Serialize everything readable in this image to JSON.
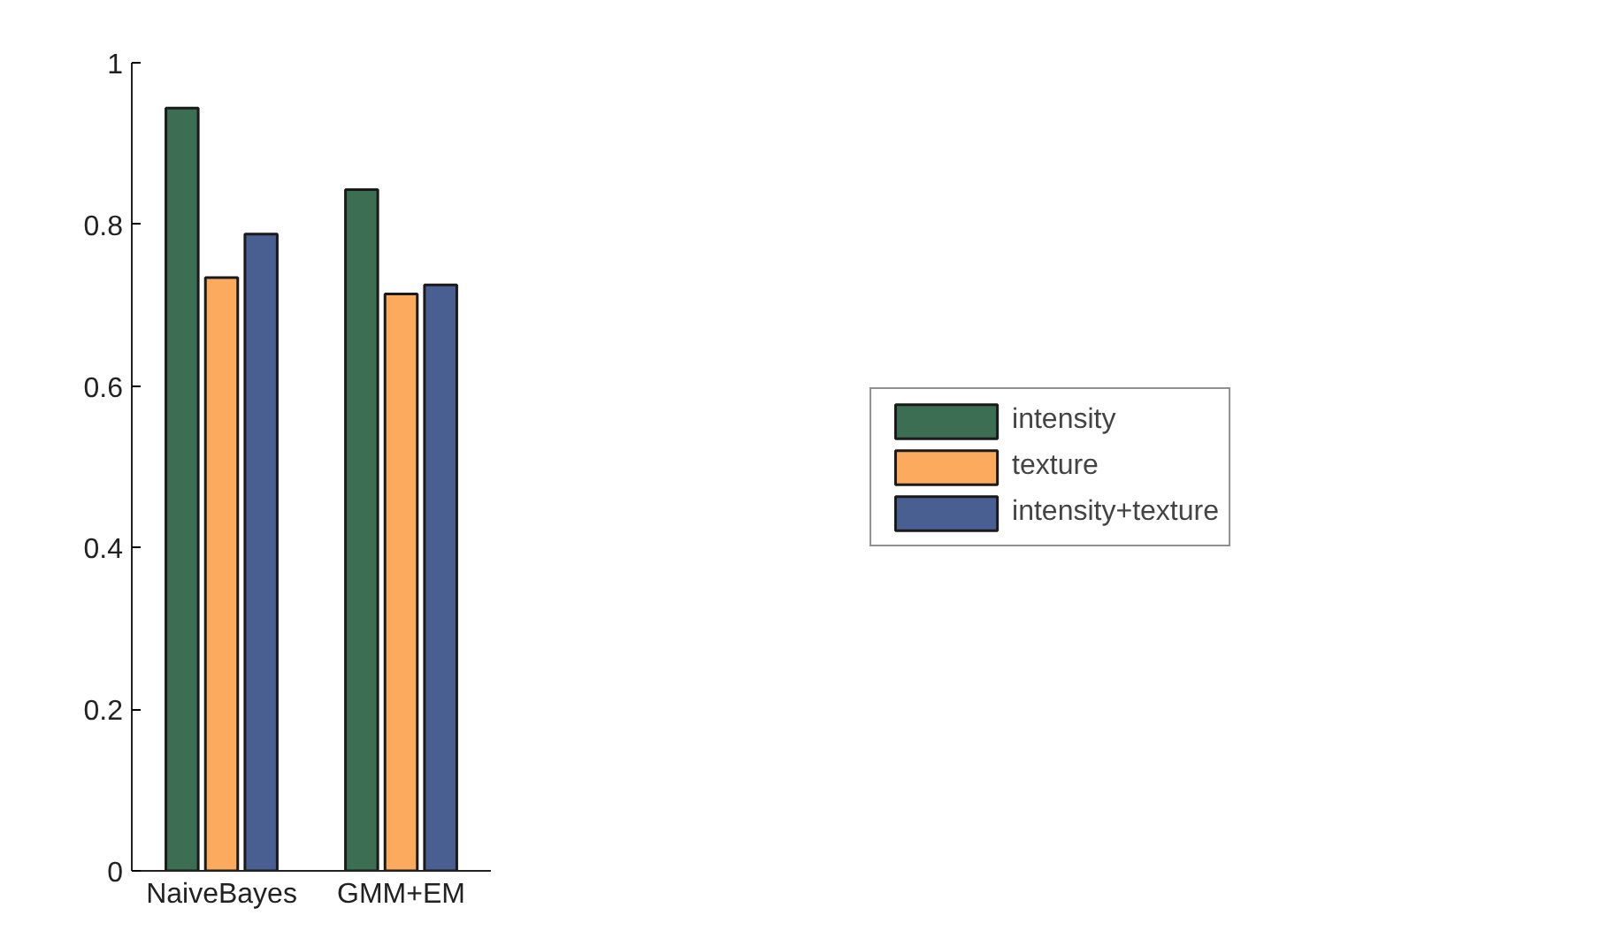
{
  "chart_data": {
    "type": "bar",
    "categories": [
      "NaiveBayes",
      "GMM+EM"
    ],
    "series": [
      {
        "name": "intensity",
        "color": "#3b6e52",
        "values": [
          0.944,
          0.843
        ]
      },
      {
        "name": "texture",
        "color": "#fcab5e",
        "values": [
          0.734,
          0.714
        ]
      },
      {
        "name": "intensity+texture",
        "color": "#4a5f91",
        "values": [
          0.788,
          0.725
        ]
      }
    ],
    "ylim": [
      0,
      1
    ],
    "yticks": [
      0,
      0.2,
      0.4,
      0.6,
      0.8,
      1
    ],
    "grid": false,
    "legend": "right"
  }
}
